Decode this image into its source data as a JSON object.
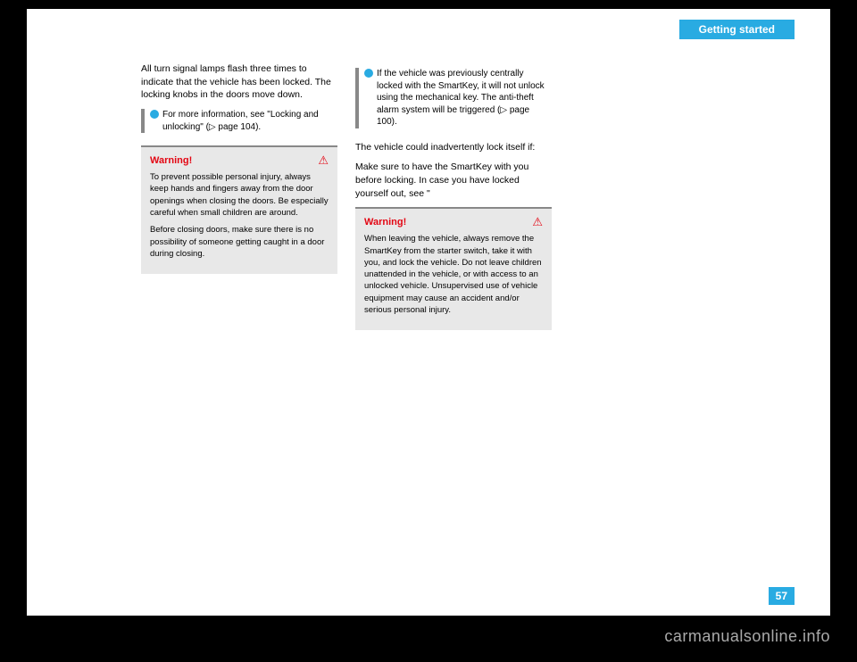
{
  "header": {
    "tab": "Getting started"
  },
  "page_number": "57",
  "watermark": "carmanualsonline.info",
  "col1": {
    "intro": "All turn signal lamps flash three times to indicate that the vehicle has been locked. The locking knobs in the doors move down.",
    "info": "For more information, see \"Locking and unlocking\" (▷ page 104).",
    "warn_title": "Warning!",
    "warn_p1": "To prevent possible personal injury, always keep hands and fingers away from the door openings when closing the doors. Be especially careful when small children are around.",
    "warn_p2": "Before closing doors, make sure there is no possibility of someone getting caught in a door during closing."
  },
  "col2": {
    "info": "If the vehicle was previously centrally locked with the SmartKey, it will not unlock using the mechanical key. The anti-theft alarm system will be triggered (▷ page 100).",
    "body1": "The vehicle could inadvertently lock itself if:",
    "body2": "Make sure to have the SmartKey with you before locking. In case you have locked yourself out, see \"",
    "warn_title": "Warning!",
    "warn_p1": "When leaving the vehicle, always remove the SmartKey from the starter switch, take it with you, and lock the vehicle. Do not leave children unattended in the vehicle, or with access to an unlocked vehicle. Unsupervised use of vehicle equipment may cause an accident and/or serious personal injury."
  }
}
